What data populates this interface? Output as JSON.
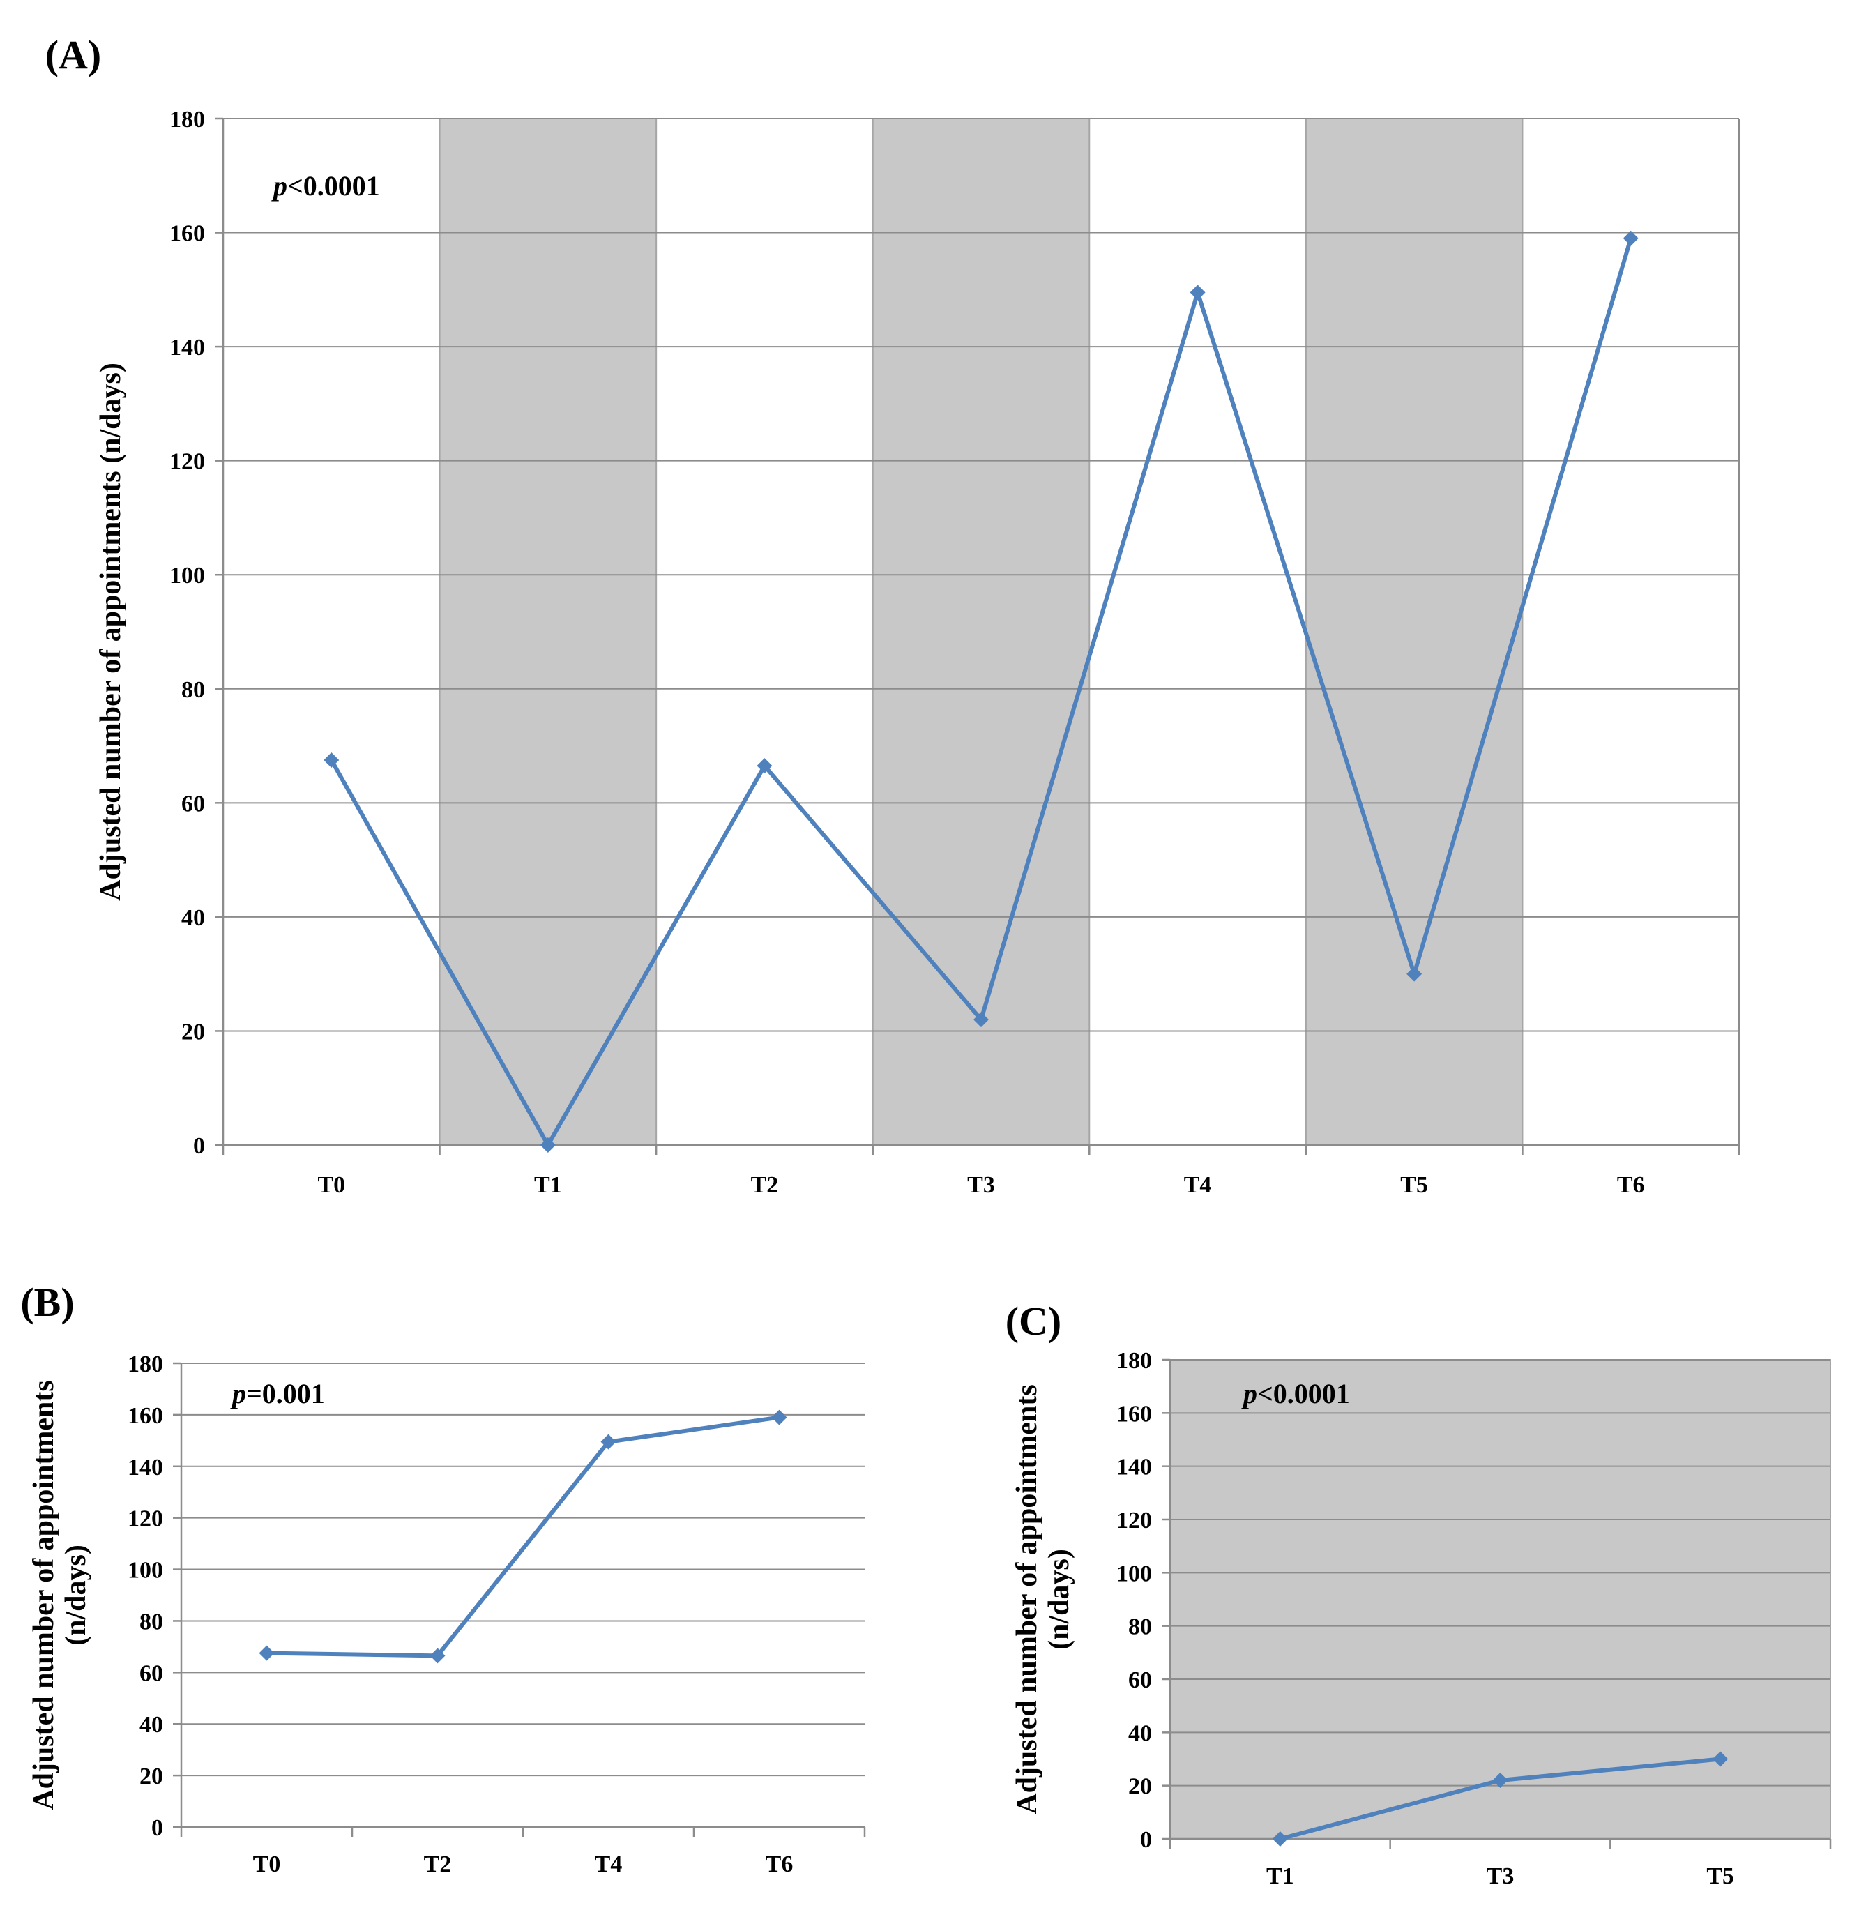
{
  "chart_data": [
    {
      "id": "A",
      "type": "line",
      "panel_label": "(A)",
      "annotation_p": "p",
      "annotation_rest": "<0.0001",
      "ylabel": "Adjusted number of appointments (n/days)",
      "ylabel_line2": "",
      "ylim": [
        0,
        180
      ],
      "yticks": [
        "0",
        "20",
        "40",
        "60",
        "80",
        "100",
        "120",
        "140",
        "160",
        "180"
      ],
      "categories": [
        "T0",
        "T1",
        "T2",
        "T3",
        "T4",
        "T5",
        "T6"
      ],
      "values": [
        67.5,
        0,
        66.5,
        22,
        149.5,
        30,
        159
      ],
      "shaded_categories": [
        "T1",
        "T3",
        "T5"
      ],
      "shade_all": false,
      "series_color": "#4f81bd"
    },
    {
      "id": "B",
      "type": "line",
      "panel_label": "(B)",
      "annotation_p": "p",
      "annotation_rest": "=0.001",
      "ylabel": "Adjusted number of appointments",
      "ylabel_line2": "(n/days)",
      "ylim": [
        0,
        180
      ],
      "yticks": [
        "0",
        "20",
        "40",
        "60",
        "80",
        "100",
        "120",
        "140",
        "160",
        "180"
      ],
      "categories": [
        "T0",
        "T2",
        "T4",
        "T6"
      ],
      "values": [
        67.5,
        66.5,
        149.5,
        159
      ],
      "shaded_categories": [],
      "shade_all": false,
      "series_color": "#4f81bd"
    },
    {
      "id": "C",
      "type": "line",
      "panel_label": "(C)",
      "annotation_p": "p",
      "annotation_rest": "<0.0001",
      "ylabel": "Adjusted number of appointments",
      "ylabel_line2": "(n/days)",
      "ylim": [
        0,
        180
      ],
      "yticks": [
        "0",
        "20",
        "40",
        "60",
        "80",
        "100",
        "120",
        "140",
        "160",
        "180"
      ],
      "categories": [
        "T1",
        "T3",
        "T5"
      ],
      "values": [
        0,
        22,
        30
      ],
      "shaded_categories": [],
      "shade_all": true,
      "series_color": "#4f81bd"
    }
  ]
}
